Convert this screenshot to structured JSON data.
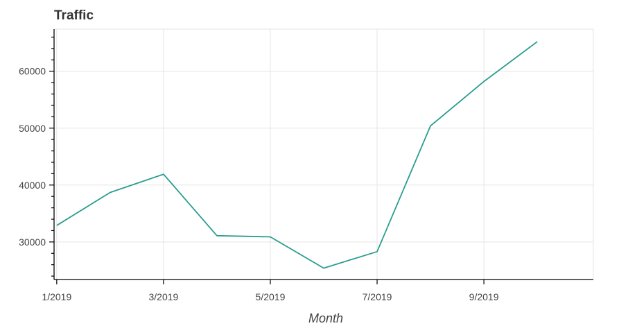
{
  "chart_data": {
    "type": "line",
    "title": "Traffic",
    "xlabel": "Month",
    "ylabel": "",
    "x_tick_labels": [
      "1/2019",
      "3/2019",
      "5/2019",
      "7/2019",
      "9/2019"
    ],
    "x_tick_months": [
      1,
      3,
      5,
      7,
      9
    ],
    "x_months": [
      1,
      2,
      3,
      4,
      5,
      6,
      7,
      8,
      9,
      10
    ],
    "x": [
      "1/2019",
      "2/2019",
      "3/2019",
      "4/2019",
      "5/2019",
      "6/2019",
      "7/2019",
      "8/2019",
      "9/2019",
      "10/2019"
    ],
    "series": [
      {
        "values": [
          32900,
          38700,
          41900,
          31100,
          30900,
          25400,
          28300,
          50400,
          58200,
          65200
        ],
        "color": "#2a9d8f"
      }
    ],
    "y_ticks": [
      30000,
      40000,
      50000,
      60000
    ],
    "y_tick_labels": [
      "30000",
      "40000",
      "50000",
      "60000"
    ],
    "xlim": [
      0.95,
      11.05
    ],
    "ylim": [
      23400,
      67400
    ],
    "grid": true,
    "legend": "none"
  }
}
